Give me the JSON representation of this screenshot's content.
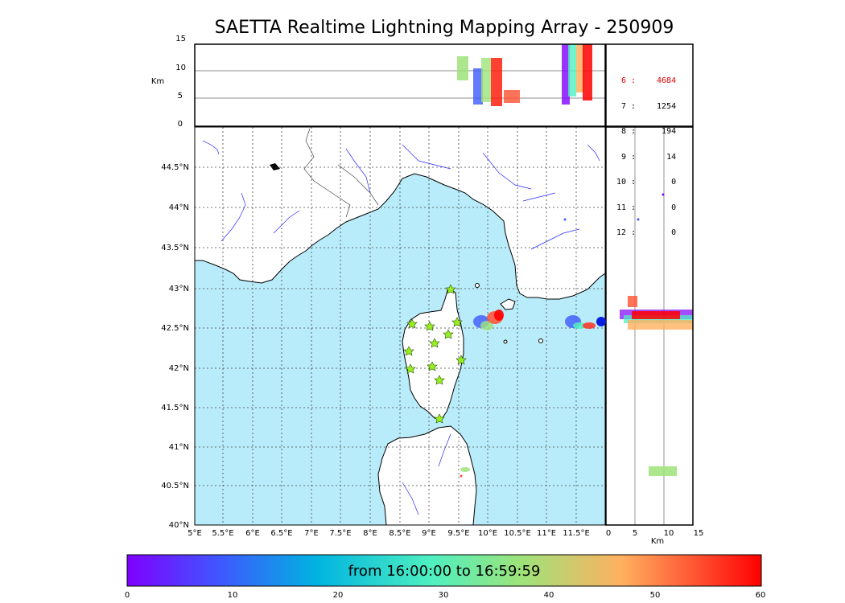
{
  "title": "SAETTA Realtime Lightning Mapping Array - 250909",
  "colorbar": {
    "caption": "from 16:00:00 to 16:59:59",
    "ticks": [
      "0",
      "10",
      "20",
      "30",
      "40",
      "50",
      "60"
    ],
    "colors": [
      "#7f00ff",
      "#3d5afe",
      "#00b4e0",
      "#4ff0c0",
      "#9de37a",
      "#ffb060",
      "#ff5030",
      "#ff0000"
    ]
  },
  "alt_panel": {
    "ylabel": "Km",
    "yticks": [
      "15",
      "10",
      "5",
      "0"
    ]
  },
  "side_panel": {
    "xlabel": "Km",
    "xticks": [
      "0",
      "5",
      "10",
      "15"
    ]
  },
  "map": {
    "lon_ticks": [
      "5°E",
      "5.5°E",
      "6°E",
      "6.5°E",
      "7°E",
      "7.5°E",
      "8°E",
      "8.5°E",
      "9°E",
      "9.5°E",
      "10°E",
      "10.5°E",
      "11°E",
      "11.5°E"
    ],
    "lat_ticks": [
      "44.5°N",
      "44°N",
      "43.5°N",
      "43°N",
      "42.5°N",
      "42°N",
      "41.5°N",
      "41°N",
      "40.5°N",
      "40°N"
    ],
    "sea_color": "#b9ecfa",
    "star_color": "#9aef20"
  },
  "stats": [
    {
      "label": "6",
      "value": "4684",
      "highlight": true
    },
    {
      "label": "7",
      "value": "1254",
      "highlight": false
    },
    {
      "label": "8",
      "value": "194",
      "highlight": false
    },
    {
      "label": "9",
      "value": "14",
      "highlight": false
    },
    {
      "label": "10",
      "value": "0",
      "highlight": false
    },
    {
      "label": "11",
      "value": "0",
      "highlight": false
    },
    {
      "label": "12",
      "value": "0",
      "highlight": false
    }
  ]
}
